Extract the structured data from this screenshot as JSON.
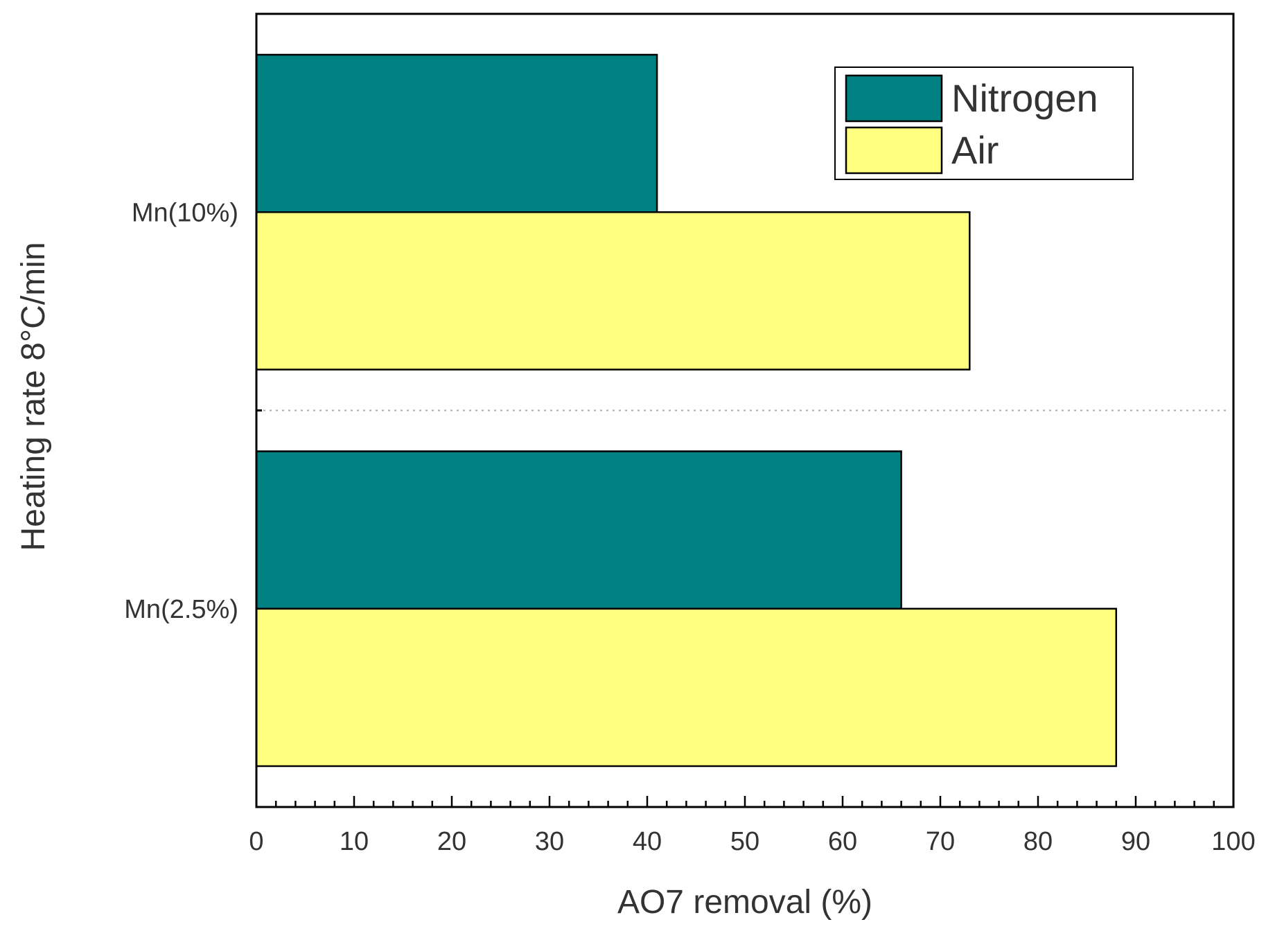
{
  "chart_data": {
    "type": "bar",
    "orientation": "horizontal",
    "categories": [
      "Mn(10%)",
      "Mn(2.5%)"
    ],
    "series": [
      {
        "name": "Nitrogen",
        "color": "#008080",
        "values": [
          41,
          66
        ]
      },
      {
        "name": "Air",
        "color": "#ffff80",
        "values": [
          73,
          88
        ]
      }
    ],
    "xlabel": "AO7 removal (%)",
    "ylabel": "Heating rate  8°C/min",
    "xlim": [
      0,
      100
    ],
    "xticks": [
      "0",
      "10",
      "20",
      "30",
      "40",
      "50",
      "60",
      "70",
      "80",
      "90",
      "100"
    ],
    "grid": false,
    "legend_position": "top-right",
    "group_separator": "dotted"
  }
}
